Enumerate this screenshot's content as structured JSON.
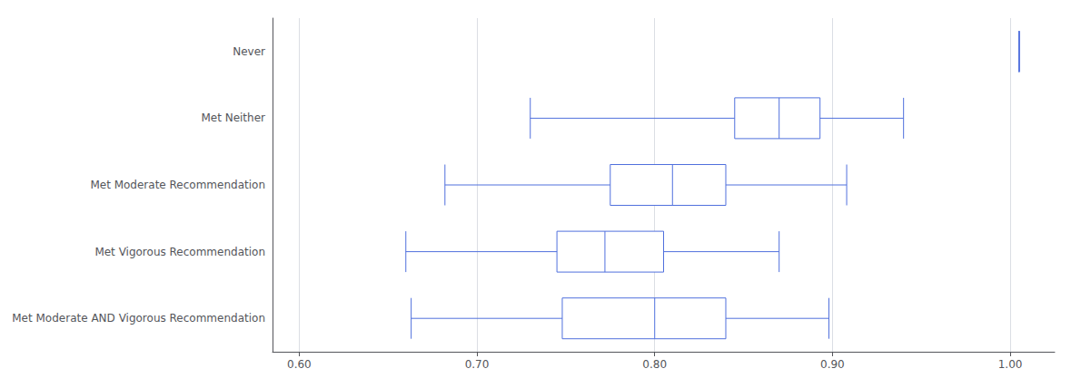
{
  "chart_data": {
    "type": "boxplot",
    "orientation": "horizontal",
    "categories": [
      "Never",
      "Met Neither",
      "Met Moderate Recommendation",
      "Met Vigorous Recommendation",
      "Met Moderate AND Vigorous Recommendation"
    ],
    "values": [
      [
        1.005,
        1.005,
        1.005,
        1.005,
        1.005
      ],
      [
        0.73,
        0.845,
        0.87,
        0.893,
        0.94
      ],
      [
        0.682,
        0.775,
        0.81,
        0.84,
        0.908
      ],
      [
        0.66,
        0.745,
        0.772,
        0.805,
        0.87
      ],
      [
        0.663,
        0.748,
        0.8,
        0.84,
        0.898
      ]
    ],
    "xlim": [
      0.585,
      1.025
    ],
    "xticks": [
      {
        "value": 0.6,
        "label": "0.60"
      },
      {
        "value": 0.7,
        "label": "0.70"
      },
      {
        "value": 0.8,
        "label": "0.80"
      },
      {
        "value": 0.9,
        "label": "0.90"
      },
      {
        "value": 1.0,
        "label": "1.00"
      }
    ],
    "grid": true
  }
}
